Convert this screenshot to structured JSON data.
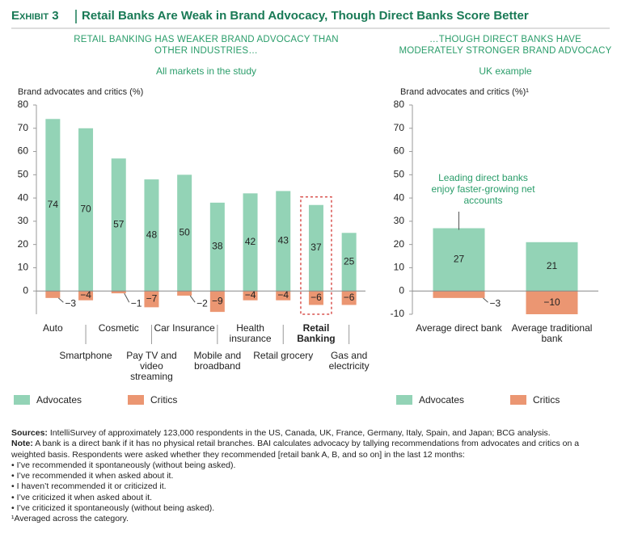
{
  "header": {
    "exhibit": "Exhibit 3",
    "title": "Retail Banks Are Weak in Brand Advocacy, Though Direct Banks Score Better"
  },
  "chart_data": [
    {
      "type": "bar",
      "title": "RETAIL BANKING HAS WEAKER BRAND ADVOCACY THAN OTHER INDUSTRIES…",
      "subtitle": "All markets in the study",
      "ylabel": "Brand advocates and critics (%)",
      "categories": [
        "Auto",
        "Smartphone",
        "Cosmetic",
        "Pay TV and video streaming",
        "Car Insurance",
        "Mobile and broadband",
        "Health insurance",
        "Retail grocery",
        "Retail Banking",
        "Gas and electricity"
      ],
      "series": [
        {
          "name": "Advocates",
          "color": "#93d3b6",
          "values": [
            74,
            70,
            57,
            48,
            50,
            38,
            42,
            43,
            37,
            25
          ]
        },
        {
          "name": "Critics",
          "color": "#eb9672",
          "values": [
            -3,
            -4,
            -1,
            -7,
            -2,
            -9,
            -4,
            -4,
            -6,
            -6
          ],
          "value_labels": [
            "−3",
            "−4",
            "−1",
            "−7",
            "−2",
            "−9",
            "−4",
            "−4",
            "−6",
            "−6"
          ]
        }
      ],
      "ylim": [
        -10,
        80
      ],
      "yticks": [
        0,
        10,
        20,
        30,
        40,
        50,
        60,
        70,
        80
      ],
      "highlight": 8,
      "legend": "bottom"
    },
    {
      "type": "bar",
      "title": "…THOUGH DIRECT BANKS HAVE MODERATELY STRONGER BRAND ADVOCACY",
      "subtitle": "UK example",
      "ylabel": "Brand advocates and critics (%)¹",
      "categories": [
        "Average direct bank",
        "Average traditional bank"
      ],
      "series": [
        {
          "name": "Advocates",
          "color": "#93d3b6",
          "values": [
            27,
            21
          ]
        },
        {
          "name": "Critics",
          "color": "#eb9672",
          "values": [
            -3,
            -10
          ],
          "value_labels": [
            "−3",
            "−10"
          ]
        }
      ],
      "annotation": "Leading direct banks enjoy faster-growing net accounts",
      "ylim": [
        -10,
        80
      ],
      "yticks": [
        -10,
        0,
        10,
        20,
        30,
        40,
        50,
        60,
        70,
        80
      ],
      "legend": "bottom"
    }
  ],
  "notes": {
    "sources_label": "Sources:",
    "sources": "IntelliSurvey of approximately 123,000 respondents in the US, Canada, UK, France, Germany, Italy, Spain, and Japan; BCG analysis.",
    "note_label": "Note:",
    "note": "A bank is a direct bank if it has no physical retail branches. BAI calculates advocacy by tallying recommendations from advocates and critics on a weighted basis. Respondents were asked whether they recommended [retail bank A, B, and so on] in the last 12 months:",
    "bullets": [
      "I’ve recommended it spontaneously (without being asked).",
      "I’ve recommended it when asked about it.",
      "I haven’t recommended it or criticized it.",
      "I’ve criticized it when asked about it.",
      "I’ve criticized it spontaneously (without being asked)."
    ],
    "footnote": "¹Averaged across the category."
  }
}
